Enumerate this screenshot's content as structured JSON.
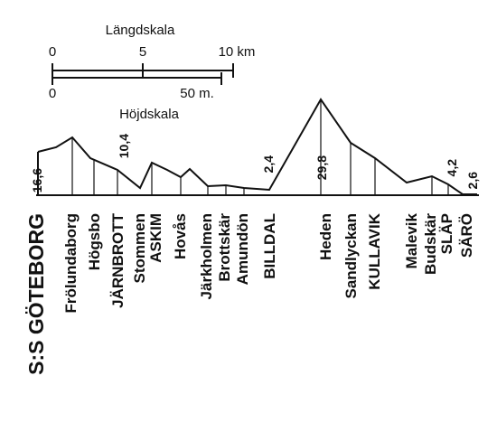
{
  "scale": {
    "length_title": "Längdskala",
    "length_ticks": [
      "0",
      "5",
      "10 km"
    ],
    "height_title": "Höjdskala",
    "height_ticks": [
      "0",
      "50 m."
    ]
  },
  "distances": [
    "16,6",
    "10,4",
    "2,4",
    "29,8",
    "4,2",
    "2,6"
  ],
  "stations": [
    "S:S GÖTEBORG",
    "Frölundaborg",
    "Högsbo",
    "JÄRNBROTT",
    "Stommen",
    "ASKIM",
    "Hovås",
    "Järkholmen",
    "Brottskär",
    "Amundön",
    "BILLDAL",
    "Heden",
    "Sandlyckan",
    "KULLAVIK",
    "Malevik",
    "Budskär",
    "SLÄP",
    "SÄRÖ"
  ]
}
